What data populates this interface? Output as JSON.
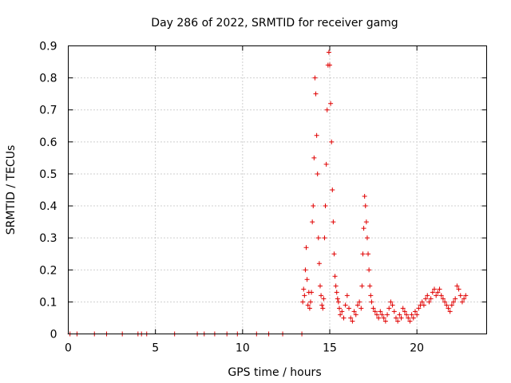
{
  "chart_data": {
    "type": "scatter",
    "title": "Day 286 of 2022, SRMTID for receiver gamg",
    "xlabel": "GPS time / hours",
    "ylabel": "SRMTID / TECUs",
    "xlim": [
      0,
      24
    ],
    "ylim": [
      0,
      0.9
    ],
    "xticks": [
      0,
      5,
      10,
      15,
      20
    ],
    "yticks": [
      0,
      0.1,
      0.2,
      0.3,
      0.4,
      0.5,
      0.6,
      0.7,
      0.8,
      0.9
    ],
    "xtick_labels": [
      "0",
      "5",
      "10",
      "15",
      "20"
    ],
    "ytick_labels": [
      "0",
      "0.1",
      "0.2",
      "0.3",
      "0.4",
      "0.5",
      "0.6",
      "0.7",
      "0.8",
      "0.9"
    ],
    "grid": true,
    "marker": "+",
    "marker_color": "#e00000",
    "series": [
      {
        "name": "SRMTID",
        "x": [
          0.1,
          0.5,
          1.5,
          2.2,
          3.1,
          4.0,
          4.2,
          4.5,
          6.1,
          7.4,
          7.8,
          8.4,
          9.1,
          9.7,
          10.8,
          11.5,
          12.3,
          13.4,
          13.45,
          13.5,
          13.55,
          13.6,
          13.65,
          13.7,
          13.75,
          13.8,
          13.85,
          13.9,
          13.95,
          14.0,
          14.05,
          14.1,
          14.15,
          14.2,
          14.25,
          14.3,
          14.35,
          14.4,
          14.45,
          14.5,
          14.55,
          14.6,
          14.65,
          14.7,
          14.75,
          14.8,
          14.85,
          14.9,
          14.95,
          15.0,
          15.05,
          15.1,
          15.15,
          15.2,
          15.25,
          15.3,
          15.35,
          15.4,
          15.45,
          15.5,
          15.55,
          15.6,
          15.7,
          15.8,
          15.9,
          16.0,
          16.1,
          16.2,
          16.3,
          16.4,
          16.5,
          16.6,
          16.7,
          16.8,
          16.85,
          16.9,
          16.95,
          17.0,
          17.05,
          17.1,
          17.15,
          17.2,
          17.25,
          17.3,
          17.35,
          17.4,
          17.5,
          17.6,
          17.7,
          17.8,
          17.9,
          18.0,
          18.1,
          18.2,
          18.3,
          18.4,
          18.5,
          18.6,
          18.7,
          18.8,
          18.9,
          19.0,
          19.1,
          19.2,
          19.3,
          19.4,
          19.5,
          19.6,
          19.7,
          19.8,
          19.9,
          20.0,
          20.1,
          20.2,
          20.3,
          20.4,
          20.5,
          20.6,
          20.7,
          20.8,
          20.9,
          21.0,
          21.1,
          21.2,
          21.3,
          21.4,
          21.5,
          21.6,
          21.7,
          21.8,
          21.9,
          22.0,
          22.1,
          22.2,
          22.3,
          22.4,
          22.5,
          22.6,
          22.7,
          22.8
        ],
        "y": [
          0,
          0,
          0,
          0,
          0,
          0,
          0,
          0,
          0,
          0,
          0,
          0,
          0,
          0,
          0,
          0,
          0,
          0.0,
          0.1,
          0.14,
          0.12,
          0.2,
          0.27,
          0.17,
          0.09,
          0.13,
          0.08,
          0.1,
          0.13,
          0.35,
          0.4,
          0.55,
          0.8,
          0.75,
          0.62,
          0.5,
          0.3,
          0.22,
          0.15,
          0.12,
          0.09,
          0.08,
          0.11,
          0.3,
          0.4,
          0.53,
          0.7,
          0.84,
          0.88,
          0.84,
          0.72,
          0.6,
          0.45,
          0.35,
          0.25,
          0.18,
          0.15,
          0.13,
          0.11,
          0.1,
          0.08,
          0.06,
          0.07,
          0.05,
          0.09,
          0.12,
          0.08,
          0.05,
          0.04,
          0.07,
          0.06,
          0.09,
          0.1,
          0.08,
          0.15,
          0.25,
          0.33,
          0.43,
          0.4,
          0.35,
          0.3,
          0.25,
          0.2,
          0.15,
          0.12,
          0.1,
          0.08,
          0.07,
          0.06,
          0.05,
          0.07,
          0.06,
          0.05,
          0.04,
          0.06,
          0.08,
          0.1,
          0.09,
          0.07,
          0.05,
          0.04,
          0.06,
          0.05,
          0.08,
          0.07,
          0.06,
          0.05,
          0.04,
          0.06,
          0.05,
          0.07,
          0.06,
          0.08,
          0.09,
          0.1,
          0.09,
          0.11,
          0.12,
          0.1,
          0.11,
          0.13,
          0.14,
          0.12,
          0.13,
          0.14,
          0.12,
          0.11,
          0.1,
          0.09,
          0.08,
          0.07,
          0.09,
          0.1,
          0.11,
          0.15,
          0.14,
          0.12,
          0.1,
          0.11,
          0.12
        ]
      }
    ]
  }
}
